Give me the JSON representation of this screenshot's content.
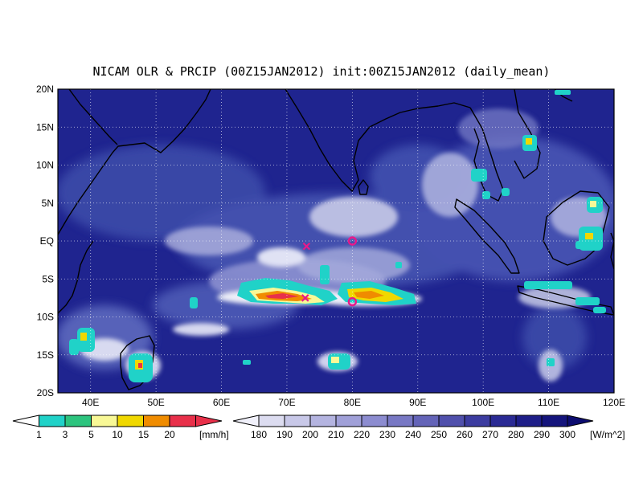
{
  "title": "NICAM OLR & PRCIP (00Z15JAN2012) init:00Z15JAN2012 (daily_mean)",
  "map": {
    "lon_range": [
      35,
      120
    ],
    "lat_range": [
      -20,
      20
    ],
    "x_ticks": [
      "40E",
      "50E",
      "60E",
      "70E",
      "80E",
      "90E",
      "100E",
      "110E",
      "120E"
    ],
    "y_ticks": [
      "20N",
      "15N",
      "10N",
      "5N",
      "EQ",
      "5S",
      "10S",
      "15S",
      "20S"
    ],
    "grid": "dotted",
    "ocean_color": "#1f248f",
    "coastline_color": "#000000",
    "markers": [
      {
        "type": "x",
        "lon": 73,
        "lat": -0.7,
        "color": "#e8188a"
      },
      {
        "type": "circle",
        "lon": 80,
        "lat": 0,
        "color": "#e8188a"
      },
      {
        "type": "x",
        "lon": 72.8,
        "lat": -7.5,
        "color": "#e8188a"
      },
      {
        "type": "circle",
        "lon": 80,
        "lat": -8,
        "color": "#e8188a"
      }
    ]
  },
  "precip_colorbar": {
    "labels": [
      "1",
      "3",
      "5",
      "10",
      "15",
      "20"
    ],
    "unit": "[mm/h]",
    "colors": [
      "#20d2c8",
      "#2cc47e",
      "#f8f896",
      "#f0d800",
      "#f08c00",
      "#e8304a"
    ]
  },
  "olr_colorbar": {
    "labels": [
      "180",
      "190",
      "200",
      "210",
      "220",
      "230",
      "240",
      "250",
      "260",
      "270",
      "280",
      "290",
      "300"
    ],
    "unit": "[W/m^2]",
    "colors": [
      "#f0f0fa",
      "#dcdcf0",
      "#c8c8e8",
      "#b4b4e0",
      "#a0a0d8",
      "#8c8cd0",
      "#7878c4",
      "#6464b8",
      "#5050ac",
      "#3c3ca0",
      "#2a2a94",
      "#1e1e88",
      "#14147c",
      "#0c0c70"
    ]
  }
}
